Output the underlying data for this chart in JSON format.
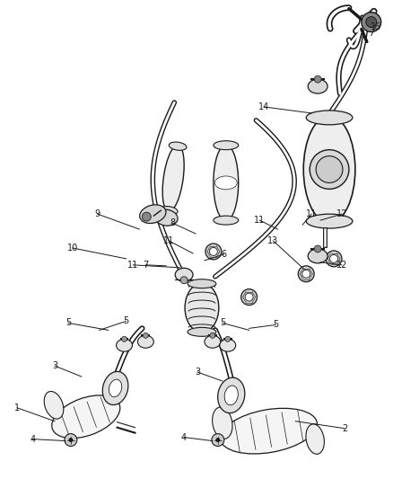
{
  "bg_color": "#ffffff",
  "line_color": "#1a1a1a",
  "fig_width": 4.38,
  "fig_height": 5.33,
  "dpi": 100,
  "label_fontsize": 7.0,
  "components": {
    "pipe_lw_outer": 2.5,
    "pipe_lw_inner": 1.5
  }
}
